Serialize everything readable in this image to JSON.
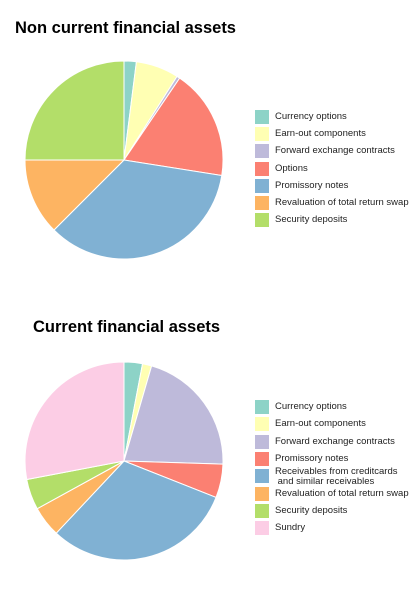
{
  "chart_data": [
    {
      "type": "pie",
      "title": "Non current financial assets",
      "legend_position": "right",
      "categories": [
        "Currency options",
        "Earn-out components",
        "Forward exchange contracts",
        "Options",
        "Promissory notes",
        "Revaluation of total return swap",
        "Security deposits"
      ],
      "values": [
        2.0,
        7.0,
        0.5,
        18.0,
        35.0,
        12.5,
        25.0
      ],
      "colors": [
        "#8dd3c7",
        "#ffffb3",
        "#bebada",
        "#fb8072",
        "#80b1d3",
        "#fdb462",
        "#b3de69"
      ]
    },
    {
      "type": "pie",
      "title": "Current financial assets",
      "legend_position": "right",
      "categories": [
        "Currency options",
        "Earn-out components",
        "Forward exchange contracts",
        "Promissory notes",
        "Receivables from creditcards\n and similar receivables",
        "Revaluation of total return swap",
        "Security deposits",
        "Sundry"
      ],
      "values": [
        3.0,
        1.5,
        21.0,
        5.5,
        31.0,
        5.0,
        5.0,
        28.0
      ],
      "colors": [
        "#8dd3c7",
        "#ffffb3",
        "#bebada",
        "#fb8072",
        "#80b1d3",
        "#fdb462",
        "#b3de69",
        "#fccde5"
      ]
    }
  ]
}
